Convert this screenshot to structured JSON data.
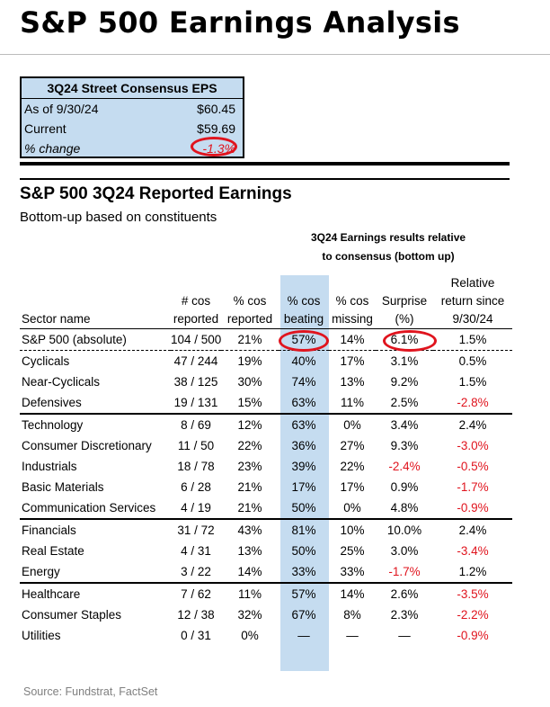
{
  "title": "S&P 500 Earnings Analysis",
  "eps_box": {
    "header": "3Q24 Street Consensus EPS",
    "rows": [
      {
        "label": "As of 9/30/24",
        "value": "$60.45"
      },
      {
        "label": "Current",
        "value": "$59.69"
      },
      {
        "label": "% change",
        "value": "-1.3%"
      }
    ]
  },
  "section": {
    "title": "S&P 500 3Q24 Reported Earnings",
    "subtitle": "Bottom-up based on constituents",
    "results_header": [
      "3Q24 Earnings results relative",
      "to consensus (bottom up)"
    ]
  },
  "table": {
    "columns": [
      [
        "Sector name"
      ],
      [
        "# cos",
        "reported"
      ],
      [
        "% cos",
        "reported"
      ],
      [
        "% cos",
        "beating"
      ],
      [
        "% cos",
        "missing"
      ],
      [
        "Surprise",
        "(%)"
      ],
      [
        "Relative",
        "return since",
        "9/30/24"
      ]
    ],
    "rows": [
      {
        "sector": "S&P 500 (absolute)",
        "reported": "104 / 500",
        "pct_reported": "21%",
        "pct_beating": "57%",
        "pct_missing": "14%",
        "surprise": "6.1%",
        "rel_return": "1.5%"
      },
      {
        "sector": "Cyclicals",
        "reported": "47 / 244",
        "pct_reported": "19%",
        "pct_beating": "40%",
        "pct_missing": "17%",
        "surprise": "3.1%",
        "rel_return": "0.5%"
      },
      {
        "sector": "Near-Cyclicals",
        "reported": "38 / 125",
        "pct_reported": "30%",
        "pct_beating": "74%",
        "pct_missing": "13%",
        "surprise": "9.2%",
        "rel_return": "1.5%"
      },
      {
        "sector": "Defensives",
        "reported": "19 / 131",
        "pct_reported": "15%",
        "pct_beating": "63%",
        "pct_missing": "11%",
        "surprise": "2.5%",
        "rel_return": "-2.8%"
      },
      {
        "sector": "Technology",
        "reported": "8 / 69",
        "pct_reported": "12%",
        "pct_beating": "63%",
        "pct_missing": "0%",
        "surprise": "3.4%",
        "rel_return": "2.4%"
      },
      {
        "sector": "Consumer Discretionary",
        "reported": "11 / 50",
        "pct_reported": "22%",
        "pct_beating": "36%",
        "pct_missing": "27%",
        "surprise": "9.3%",
        "rel_return": "-3.0%"
      },
      {
        "sector": "Industrials",
        "reported": "18 / 78",
        "pct_reported": "23%",
        "pct_beating": "39%",
        "pct_missing": "22%",
        "surprise": "-2.4%",
        "rel_return": "-0.5%"
      },
      {
        "sector": "Basic Materials",
        "reported": "6 / 28",
        "pct_reported": "21%",
        "pct_beating": "17%",
        "pct_missing": "17%",
        "surprise": "0.9%",
        "rel_return": "-1.7%"
      },
      {
        "sector": "Communication Services",
        "reported": "4 / 19",
        "pct_reported": "21%",
        "pct_beating": "50%",
        "pct_missing": "0%",
        "surprise": "4.8%",
        "rel_return": "-0.9%"
      },
      {
        "sector": "Financials",
        "reported": "31 / 72",
        "pct_reported": "43%",
        "pct_beating": "81%",
        "pct_missing": "10%",
        "surprise": "10.0%",
        "rel_return": "2.4%"
      },
      {
        "sector": "Real Estate",
        "reported": "4 / 31",
        "pct_reported": "13%",
        "pct_beating": "50%",
        "pct_missing": "25%",
        "surprise": "3.0%",
        "rel_return": "-3.4%"
      },
      {
        "sector": "Energy",
        "reported": "3 / 22",
        "pct_reported": "14%",
        "pct_beating": "33%",
        "pct_missing": "33%",
        "surprise": "-1.7%",
        "rel_return": "1.2%"
      },
      {
        "sector": "Healthcare",
        "reported": "7 / 62",
        "pct_reported": "11%",
        "pct_beating": "57%",
        "pct_missing": "14%",
        "surprise": "2.6%",
        "rel_return": "-3.5%"
      },
      {
        "sector": "Consumer Staples",
        "reported": "12 / 38",
        "pct_reported": "32%",
        "pct_beating": "67%",
        "pct_missing": "8%",
        "surprise": "2.3%",
        "rel_return": "-2.2%"
      },
      {
        "sector": "Utilities",
        "reported": "0 / 31",
        "pct_reported": "0%",
        "pct_beating": "—",
        "pct_missing": "—",
        "surprise": "—",
        "rel_return": "-0.9%"
      }
    ]
  },
  "source": "Source: Fundstrat, FactSet",
  "colors": {
    "shade": "#c5dcf0",
    "negative": "#e0141e",
    "circle": "#e0141e"
  }
}
